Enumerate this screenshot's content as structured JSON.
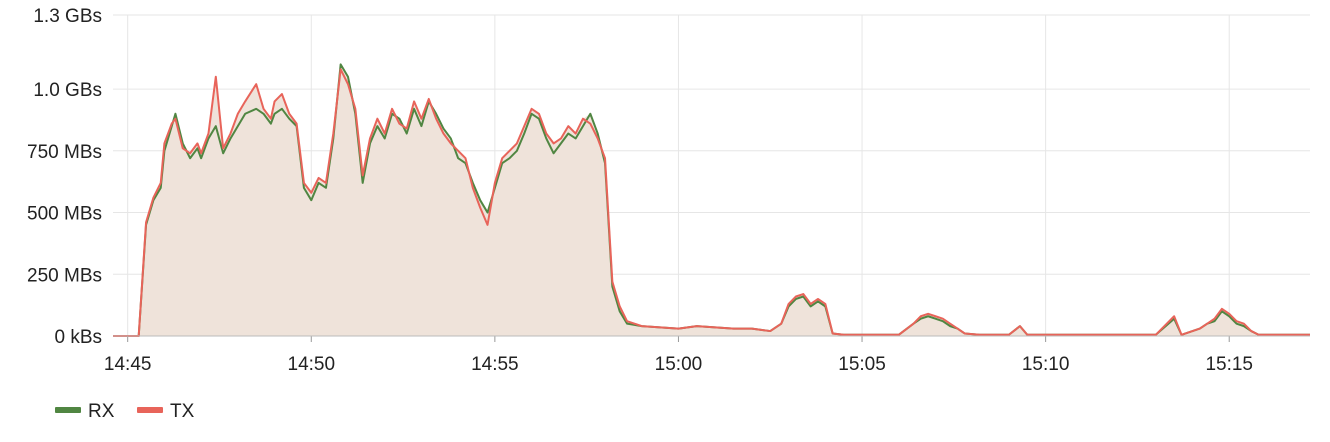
{
  "chart_data": {
    "type": "area",
    "title": "",
    "xlabel": "",
    "ylabel": "",
    "x_unit": "minutes since 14:45",
    "xlim": [
      -0.4,
      32.2
    ],
    "ylim": [
      0,
      1.3
    ],
    "y_unit": "GB/s",
    "grid": true,
    "legend_position": "bottom-left",
    "x_ticks": [
      {
        "value": 0,
        "label": "14:45"
      },
      {
        "value": 5,
        "label": "14:50"
      },
      {
        "value": 10,
        "label": "14:55"
      },
      {
        "value": 15,
        "label": "15:00"
      },
      {
        "value": 20,
        "label": "15:05"
      },
      {
        "value": 25,
        "label": "15:10"
      },
      {
        "value": 30,
        "label": "15:15"
      }
    ],
    "y_ticks": [
      {
        "value": 0,
        "label": "0 kBs"
      },
      {
        "value": 0.25,
        "label": "250 MBs"
      },
      {
        "value": 0.5,
        "label": "500 MBs"
      },
      {
        "value": 0.75,
        "label": "750 MBs"
      },
      {
        "value": 1.0,
        "label": "1.0 GBs"
      },
      {
        "value": 1.3,
        "label": "1.3 GBs"
      }
    ],
    "fill_color": "#efe3da",
    "series": [
      {
        "name": "RX",
        "color": "#508642",
        "points": [
          [
            -0.4,
            0
          ],
          [
            0.3,
            0
          ],
          [
            0.5,
            0.45
          ],
          [
            0.7,
            0.55
          ],
          [
            0.9,
            0.6
          ],
          [
            1.0,
            0.75
          ],
          [
            1.2,
            0.85
          ],
          [
            1.3,
            0.9
          ],
          [
            1.5,
            0.78
          ],
          [
            1.7,
            0.72
          ],
          [
            1.9,
            0.76
          ],
          [
            2.0,
            0.72
          ],
          [
            2.2,
            0.8
          ],
          [
            2.4,
            0.85
          ],
          [
            2.6,
            0.74
          ],
          [
            2.8,
            0.8
          ],
          [
            3.0,
            0.85
          ],
          [
            3.2,
            0.9
          ],
          [
            3.5,
            0.92
          ],
          [
            3.7,
            0.9
          ],
          [
            3.9,
            0.86
          ],
          [
            4.0,
            0.9
          ],
          [
            4.2,
            0.92
          ],
          [
            4.4,
            0.88
          ],
          [
            4.6,
            0.85
          ],
          [
            4.8,
            0.6
          ],
          [
            5.0,
            0.55
          ],
          [
            5.2,
            0.62
          ],
          [
            5.4,
            0.6
          ],
          [
            5.6,
            0.8
          ],
          [
            5.8,
            1.1
          ],
          [
            6.0,
            1.05
          ],
          [
            6.2,
            0.9
          ],
          [
            6.4,
            0.62
          ],
          [
            6.6,
            0.78
          ],
          [
            6.8,
            0.85
          ],
          [
            7.0,
            0.8
          ],
          [
            7.2,
            0.9
          ],
          [
            7.4,
            0.88
          ],
          [
            7.6,
            0.82
          ],
          [
            7.8,
            0.92
          ],
          [
            8.0,
            0.85
          ],
          [
            8.2,
            0.95
          ],
          [
            8.4,
            0.9
          ],
          [
            8.6,
            0.84
          ],
          [
            8.8,
            0.8
          ],
          [
            9.0,
            0.72
          ],
          [
            9.2,
            0.7
          ],
          [
            9.4,
            0.62
          ],
          [
            9.6,
            0.55
          ],
          [
            9.8,
            0.5
          ],
          [
            10.0,
            0.6
          ],
          [
            10.2,
            0.7
          ],
          [
            10.4,
            0.72
          ],
          [
            10.6,
            0.75
          ],
          [
            10.8,
            0.82
          ],
          [
            11.0,
            0.9
          ],
          [
            11.2,
            0.88
          ],
          [
            11.4,
            0.8
          ],
          [
            11.6,
            0.74
          ],
          [
            11.8,
            0.78
          ],
          [
            12.0,
            0.82
          ],
          [
            12.2,
            0.8
          ],
          [
            12.4,
            0.85
          ],
          [
            12.6,
            0.9
          ],
          [
            12.8,
            0.82
          ],
          [
            13.0,
            0.7
          ],
          [
            13.2,
            0.2
          ],
          [
            13.4,
            0.1
          ],
          [
            13.6,
            0.05
          ],
          [
            14.0,
            0.04
          ],
          [
            14.5,
            0.035
          ],
          [
            15.0,
            0.03
          ],
          [
            15.5,
            0.04
          ],
          [
            16.0,
            0.035
          ],
          [
            16.5,
            0.03
          ],
          [
            17.0,
            0.03
          ],
          [
            17.5,
            0.02
          ],
          [
            17.8,
            0.05
          ],
          [
            18.0,
            0.12
          ],
          [
            18.2,
            0.15
          ],
          [
            18.4,
            0.16
          ],
          [
            18.6,
            0.12
          ],
          [
            18.8,
            0.14
          ],
          [
            19.0,
            0.12
          ],
          [
            19.2,
            0.01
          ],
          [
            19.5,
            0.005
          ],
          [
            20.0,
            0.005
          ],
          [
            20.5,
            0.005
          ],
          [
            21.0,
            0.005
          ],
          [
            21.4,
            0.05
          ],
          [
            21.6,
            0.07
          ],
          [
            21.8,
            0.08
          ],
          [
            22.0,
            0.07
          ],
          [
            22.2,
            0.06
          ],
          [
            22.4,
            0.04
          ],
          [
            22.6,
            0.03
          ],
          [
            22.8,
            0.01
          ],
          [
            23.2,
            0.005
          ],
          [
            23.6,
            0.005
          ],
          [
            24.0,
            0.005
          ],
          [
            24.3,
            0.04
          ],
          [
            24.5,
            0.005
          ],
          [
            25.0,
            0.005
          ],
          [
            25.5,
            0.005
          ],
          [
            26.0,
            0.005
          ],
          [
            26.5,
            0.005
          ],
          [
            27.0,
            0.005
          ],
          [
            27.5,
            0.005
          ],
          [
            28.0,
            0.005
          ],
          [
            28.5,
            0.07
          ],
          [
            28.7,
            0.005
          ],
          [
            29.0,
            0.02
          ],
          [
            29.2,
            0.03
          ],
          [
            29.4,
            0.05
          ],
          [
            29.6,
            0.06
          ],
          [
            29.8,
            0.1
          ],
          [
            30.0,
            0.08
          ],
          [
            30.2,
            0.05
          ],
          [
            30.4,
            0.04
          ],
          [
            30.6,
            0.02
          ],
          [
            30.8,
            0.005
          ],
          [
            31.0,
            0.005
          ],
          [
            31.5,
            0.005
          ],
          [
            32.0,
            0.005
          ],
          [
            32.2,
            0.005
          ]
        ]
      },
      {
        "name": "TX",
        "color": "#e8645a",
        "points": [
          [
            -0.4,
            0
          ],
          [
            0.3,
            0
          ],
          [
            0.5,
            0.46
          ],
          [
            0.7,
            0.56
          ],
          [
            0.9,
            0.62
          ],
          [
            1.0,
            0.78
          ],
          [
            1.2,
            0.86
          ],
          [
            1.3,
            0.88
          ],
          [
            1.5,
            0.76
          ],
          [
            1.7,
            0.74
          ],
          [
            1.9,
            0.78
          ],
          [
            2.0,
            0.74
          ],
          [
            2.2,
            0.82
          ],
          [
            2.4,
            1.05
          ],
          [
            2.6,
            0.76
          ],
          [
            2.8,
            0.82
          ],
          [
            3.0,
            0.9
          ],
          [
            3.2,
            0.95
          ],
          [
            3.5,
            1.02
          ],
          [
            3.7,
            0.92
          ],
          [
            3.9,
            0.88
          ],
          [
            4.0,
            0.95
          ],
          [
            4.2,
            0.98
          ],
          [
            4.4,
            0.9
          ],
          [
            4.6,
            0.86
          ],
          [
            4.8,
            0.62
          ],
          [
            5.0,
            0.58
          ],
          [
            5.2,
            0.64
          ],
          [
            5.4,
            0.62
          ],
          [
            5.6,
            0.82
          ],
          [
            5.8,
            1.08
          ],
          [
            6.0,
            1.02
          ],
          [
            6.2,
            0.92
          ],
          [
            6.4,
            0.65
          ],
          [
            6.6,
            0.8
          ],
          [
            6.8,
            0.88
          ],
          [
            7.0,
            0.82
          ],
          [
            7.2,
            0.92
          ],
          [
            7.4,
            0.86
          ],
          [
            7.6,
            0.84
          ],
          [
            7.8,
            0.95
          ],
          [
            8.0,
            0.88
          ],
          [
            8.2,
            0.96
          ],
          [
            8.4,
            0.88
          ],
          [
            8.6,
            0.82
          ],
          [
            8.8,
            0.78
          ],
          [
            9.0,
            0.75
          ],
          [
            9.2,
            0.72
          ],
          [
            9.4,
            0.6
          ],
          [
            9.6,
            0.52
          ],
          [
            9.8,
            0.45
          ],
          [
            10.0,
            0.62
          ],
          [
            10.2,
            0.72
          ],
          [
            10.4,
            0.75
          ],
          [
            10.6,
            0.78
          ],
          [
            10.8,
            0.85
          ],
          [
            11.0,
            0.92
          ],
          [
            11.2,
            0.9
          ],
          [
            11.4,
            0.82
          ],
          [
            11.6,
            0.78
          ],
          [
            11.8,
            0.8
          ],
          [
            12.0,
            0.85
          ],
          [
            12.2,
            0.82
          ],
          [
            12.4,
            0.88
          ],
          [
            12.6,
            0.86
          ],
          [
            12.8,
            0.8
          ],
          [
            13.0,
            0.72
          ],
          [
            13.2,
            0.22
          ],
          [
            13.4,
            0.12
          ],
          [
            13.6,
            0.06
          ],
          [
            14.0,
            0.04
          ],
          [
            14.5,
            0.035
          ],
          [
            15.0,
            0.03
          ],
          [
            15.5,
            0.04
          ],
          [
            16.0,
            0.035
          ],
          [
            16.5,
            0.03
          ],
          [
            17.0,
            0.03
          ],
          [
            17.5,
            0.02
          ],
          [
            17.8,
            0.05
          ],
          [
            18.0,
            0.13
          ],
          [
            18.2,
            0.16
          ],
          [
            18.4,
            0.17
          ],
          [
            18.6,
            0.13
          ],
          [
            18.8,
            0.15
          ],
          [
            19.0,
            0.13
          ],
          [
            19.2,
            0.01
          ],
          [
            19.5,
            0.005
          ],
          [
            20.0,
            0.005
          ],
          [
            20.5,
            0.005
          ],
          [
            21.0,
            0.005
          ],
          [
            21.4,
            0.05
          ],
          [
            21.6,
            0.08
          ],
          [
            21.8,
            0.09
          ],
          [
            22.0,
            0.08
          ],
          [
            22.2,
            0.07
          ],
          [
            22.4,
            0.05
          ],
          [
            22.6,
            0.03
          ],
          [
            22.8,
            0.01
          ],
          [
            23.2,
            0.005
          ],
          [
            23.6,
            0.005
          ],
          [
            24.0,
            0.005
          ],
          [
            24.3,
            0.04
          ],
          [
            24.5,
            0.005
          ],
          [
            25.0,
            0.005
          ],
          [
            25.5,
            0.005
          ],
          [
            26.0,
            0.005
          ],
          [
            26.5,
            0.005
          ],
          [
            27.0,
            0.005
          ],
          [
            27.5,
            0.005
          ],
          [
            28.0,
            0.005
          ],
          [
            28.5,
            0.08
          ],
          [
            28.7,
            0.005
          ],
          [
            29.0,
            0.02
          ],
          [
            29.2,
            0.03
          ],
          [
            29.4,
            0.05
          ],
          [
            29.6,
            0.07
          ],
          [
            29.8,
            0.11
          ],
          [
            30.0,
            0.09
          ],
          [
            30.2,
            0.06
          ],
          [
            30.4,
            0.05
          ],
          [
            30.6,
            0.02
          ],
          [
            30.8,
            0.005
          ],
          [
            31.0,
            0.005
          ],
          [
            31.5,
            0.005
          ],
          [
            32.0,
            0.005
          ],
          [
            32.2,
            0.005
          ]
        ]
      }
    ]
  }
}
